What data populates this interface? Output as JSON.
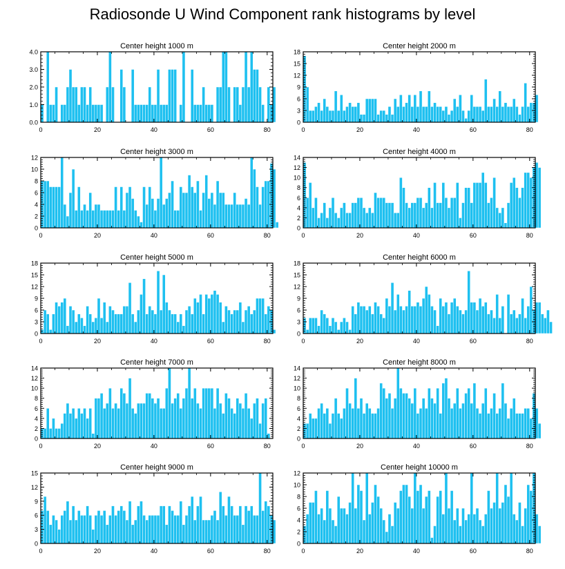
{
  "page": {
    "title": "Radiosonde U Wind Component rank histograms by level"
  },
  "colors": {
    "bar": "#1ec0f0",
    "bar_edge": "#ffffff",
    "axis": "#000000"
  },
  "chart_data": [
    {
      "type": "bar",
      "title": "Center height 1000 m",
      "xlim": [
        0,
        82
      ],
      "ylim": [
        0,
        4
      ],
      "xticks": [
        0,
        20,
        40,
        60,
        80
      ],
      "yticks": [
        0,
        1,
        2,
        3,
        4
      ],
      "ytick_labels": [
        "0.0",
        "1.0",
        "2.0",
        "3.0",
        "4.0"
      ],
      "values": [
        1,
        0,
        4,
        1,
        1,
        2,
        0,
        1,
        1,
        2,
        3,
        2,
        2,
        1,
        2,
        2,
        1,
        2,
        1,
        1,
        1,
        1,
        0,
        2,
        4,
        2,
        0,
        0,
        3,
        2,
        0,
        0,
        3,
        1,
        1,
        1,
        1,
        1,
        2,
        1,
        1,
        3,
        1,
        1,
        1,
        3,
        3,
        3,
        0,
        1,
        4,
        0,
        0,
        3,
        1,
        1,
        1,
        2,
        1,
        1,
        1,
        0,
        2,
        2,
        4,
        4,
        2,
        0,
        2,
        2,
        1,
        2,
        4,
        2,
        4,
        3,
        3,
        2,
        1,
        0,
        2,
        1,
        2
      ]
    },
    {
      "type": "bar",
      "title": "Center height 2000 m",
      "xlim": [
        0,
        82
      ],
      "ylim": [
        0,
        18
      ],
      "xticks": [
        0,
        20,
        40,
        60,
        80
      ],
      "yticks": [
        0,
        3,
        6,
        9,
        12,
        15,
        18
      ],
      "ytick_labels": [
        "0",
        "3",
        "6",
        "9",
        "12",
        "15",
        "18"
      ],
      "values": [
        17,
        9,
        3,
        3,
        4,
        5,
        3,
        6,
        4,
        3,
        3,
        8,
        3,
        7,
        3,
        4,
        5,
        4,
        4,
        5,
        2,
        2,
        6,
        6,
        6,
        6,
        2,
        3,
        3,
        2,
        4,
        2,
        6,
        4,
        7,
        4,
        5,
        7,
        4,
        7,
        4,
        8,
        4,
        4,
        8,
        4,
        5,
        4,
        4,
        3,
        4,
        2,
        3,
        6,
        4,
        7,
        3,
        1,
        3,
        7,
        4,
        4,
        4,
        3,
        11,
        4,
        4,
        6,
        4,
        8,
        4,
        5,
        4,
        4,
        6,
        4,
        2,
        4,
        10,
        4,
        5,
        5,
        7
      ]
    },
    {
      "type": "bar",
      "title": "Center height 3000 m",
      "xlim": [
        0,
        82
      ],
      "ylim": [
        0,
        12
      ],
      "xticks": [
        0,
        20,
        40,
        60,
        80
      ],
      "yticks": [
        0,
        2,
        4,
        6,
        8,
        10,
        12
      ],
      "ytick_labels": [
        "0",
        "2",
        "4",
        "6",
        "8",
        "10",
        "12"
      ],
      "values": [
        8,
        8,
        8,
        7,
        7,
        7,
        7,
        12,
        4,
        2,
        6,
        10,
        3,
        7,
        3,
        4,
        3,
        6,
        3,
        4,
        4,
        3,
        3,
        3,
        3,
        3,
        7,
        3,
        7,
        3,
        6,
        7,
        5,
        3,
        2,
        1,
        7,
        4,
        7,
        5,
        3,
        5,
        12,
        4,
        5,
        6,
        8,
        3,
        3,
        7,
        6,
        6,
        9,
        7,
        6,
        8,
        3,
        6,
        9,
        5,
        6,
        4,
        8,
        6,
        6,
        4,
        4,
        4,
        6,
        4,
        4,
        4,
        5,
        4,
        12,
        10,
        7,
        4,
        7,
        8,
        8,
        11,
        10,
        1
      ]
    },
    {
      "type": "bar",
      "title": "Center height 4000 m",
      "xlim": [
        0,
        82
      ],
      "ylim": [
        0,
        14
      ],
      "xticks": [
        0,
        20,
        40,
        60,
        80
      ],
      "yticks": [
        0,
        2,
        4,
        6,
        8,
        10,
        12,
        14
      ],
      "ytick_labels": [
        "0",
        "2",
        "4",
        "6",
        "8",
        "10",
        "12",
        "14"
      ],
      "values": [
        13,
        6,
        9,
        4,
        6,
        2,
        3,
        5,
        2,
        4,
        6,
        3,
        2,
        4,
        5,
        3,
        3,
        5,
        5,
        6,
        6,
        4,
        3,
        4,
        3,
        7,
        6,
        6,
        6,
        5,
        5,
        5,
        3,
        3,
        10,
        8,
        5,
        4,
        5,
        5,
        6,
        6,
        4,
        5,
        8,
        4,
        9,
        5,
        5,
        9,
        6,
        4,
        6,
        6,
        9,
        2,
        5,
        8,
        8,
        5,
        9,
        9,
        9,
        11,
        9,
        5,
        6,
        10,
        4,
        3,
        4,
        1,
        5,
        9,
        10,
        8,
        6,
        8,
        11,
        11,
        10,
        12,
        13,
        12
      ]
    },
    {
      "type": "bar",
      "title": "Center height 5000 m",
      "xlim": [
        0,
        82
      ],
      "ylim": [
        0,
        18
      ],
      "xticks": [
        0,
        20,
        40,
        60,
        80
      ],
      "yticks": [
        0,
        3,
        6,
        9,
        12,
        15,
        18
      ],
      "ytick_labels": [
        "0",
        "3",
        "6",
        "9",
        "12",
        "15",
        "18"
      ],
      "values": [
        1,
        6,
        5,
        1,
        5,
        8,
        7,
        8,
        9,
        2,
        7,
        6,
        3,
        5,
        4,
        2,
        7,
        5,
        3,
        4,
        9,
        4,
        8,
        3,
        7,
        6,
        5,
        5,
        5,
        7,
        7,
        13,
        5,
        3,
        6,
        10,
        14,
        5,
        7,
        6,
        5,
        16,
        6,
        15,
        8,
        6,
        5,
        5,
        3,
        5,
        2,
        6,
        7,
        5,
        9,
        8,
        10,
        5,
        10,
        9,
        10,
        11,
        10,
        8,
        3,
        7,
        6,
        5,
        6,
        6,
        8,
        3,
        6,
        7,
        5,
        6,
        9,
        9,
        9,
        5,
        7,
        6,
        1
      ]
    },
    {
      "type": "bar",
      "title": "Center height 6000 m",
      "xlim": [
        0,
        82
      ],
      "ylim": [
        0,
        18
      ],
      "xticks": [
        0,
        20,
        40,
        60,
        80
      ],
      "yticks": [
        0,
        3,
        6,
        9,
        12,
        15,
        18
      ],
      "ytick_labels": [
        "0",
        "3",
        "6",
        "9",
        "12",
        "15",
        "18"
      ],
      "values": [
        4,
        1,
        4,
        4,
        4,
        2,
        6,
        5,
        4,
        2,
        4,
        3,
        1,
        3,
        4,
        3,
        1,
        7,
        5,
        8,
        7,
        7,
        6,
        7,
        5,
        8,
        7,
        5,
        4,
        9,
        7,
        13,
        6,
        10,
        7,
        6,
        7,
        11,
        7,
        7,
        8,
        7,
        9,
        12,
        10,
        7,
        6,
        2,
        9,
        7,
        8,
        5,
        8,
        9,
        7,
        6,
        5,
        6,
        16,
        8,
        8,
        6,
        9,
        7,
        8,
        5,
        6,
        4,
        10,
        4,
        7,
        0,
        10,
        5,
        6,
        4,
        5,
        9,
        4,
        7,
        12,
        6,
        8,
        8,
        5,
        4,
        6,
        3
      ]
    },
    {
      "type": "bar",
      "title": "Center height 7000 m",
      "xlim": [
        0,
        82
      ],
      "ylim": [
        0,
        14
      ],
      "xticks": [
        0,
        20,
        40,
        60,
        80
      ],
      "yticks": [
        0,
        2,
        4,
        6,
        8,
        10,
        12,
        14
      ],
      "ytick_labels": [
        "0",
        "2",
        "4",
        "6",
        "8",
        "10",
        "12",
        "14"
      ],
      "values": [
        2,
        2,
        6,
        2,
        4,
        2,
        2,
        3,
        5,
        7,
        5,
        6,
        4,
        6,
        5,
        6,
        4,
        6,
        1,
        8,
        8,
        9,
        6,
        7,
        10,
        6,
        7,
        6,
        10,
        9,
        7,
        12,
        6,
        5,
        7,
        7,
        7,
        9,
        9,
        8,
        7,
        8,
        6,
        6,
        10,
        14,
        7,
        8,
        9,
        6,
        8,
        10,
        14,
        8,
        10,
        7,
        6,
        10,
        10,
        10,
        10,
        6,
        10,
        7,
        5,
        9,
        8,
        6,
        5,
        8,
        7,
        6,
        9,
        6,
        4,
        7,
        8,
        3,
        7,
        8,
        1
      ]
    },
    {
      "type": "bar",
      "title": "Center height 8000 m",
      "xlim": [
        0,
        82
      ],
      "ylim": [
        0,
        14
      ],
      "xticks": [
        0,
        20,
        40,
        60,
        80
      ],
      "yticks": [
        0,
        2,
        4,
        6,
        8,
        10,
        12,
        14
      ],
      "ytick_labels": [
        "0",
        "2",
        "4",
        "6",
        "8",
        "10",
        "12",
        "14"
      ],
      "values": [
        3,
        3,
        5,
        4,
        4,
        6,
        7,
        5,
        6,
        3,
        5,
        8,
        5,
        4,
        6,
        10,
        7,
        6,
        12,
        6,
        8,
        5,
        7,
        6,
        5,
        5,
        6,
        11,
        10,
        8,
        9,
        6,
        8,
        14,
        10,
        9,
        9,
        8,
        7,
        10,
        5,
        6,
        8,
        6,
        10,
        8,
        7,
        10,
        5,
        11,
        12,
        8,
        6,
        7,
        10,
        6,
        7,
        9,
        10,
        7,
        11,
        6,
        5,
        7,
        10,
        5,
        6,
        9,
        5,
        6,
        11,
        7,
        4,
        6,
        8,
        5,
        5,
        5,
        6,
        6,
        4,
        9,
        6,
        3
      ]
    },
    {
      "type": "bar",
      "title": "Center height 9000 m",
      "xlim": [
        0,
        82
      ],
      "ylim": [
        0,
        15
      ],
      "xticks": [
        0,
        20,
        40,
        60,
        80
      ],
      "yticks": [
        0,
        3,
        6,
        9,
        12,
        15
      ],
      "ytick_labels": [
        "0",
        "3",
        "6",
        "9",
        "12",
        "15"
      ],
      "values": [
        7,
        10,
        7,
        4,
        6,
        5,
        3,
        6,
        7,
        9,
        5,
        8,
        5,
        7,
        6,
        6,
        8,
        6,
        3,
        6,
        7,
        6,
        7,
        4,
        6,
        8,
        6,
        7,
        8,
        7,
        5,
        9,
        4,
        5,
        8,
        9,
        6,
        5,
        6,
        6,
        6,
        6,
        8,
        8,
        4,
        8,
        7,
        6,
        6,
        9,
        4,
        6,
        8,
        10,
        5,
        8,
        10,
        5,
        5,
        5,
        6,
        7,
        5,
        11,
        8,
        6,
        10,
        8,
        6,
        6,
        8,
        4,
        8,
        7,
        8,
        6,
        6,
        15,
        7,
        9,
        8,
        6,
        5
      ]
    },
    {
      "type": "bar",
      "title": "Center height 10000 m",
      "xlim": [
        0,
        82
      ],
      "ylim": [
        0,
        12
      ],
      "xticks": [
        0,
        20,
        40,
        60,
        80
      ],
      "yticks": [
        0,
        2,
        4,
        6,
        8,
        10,
        12
      ],
      "ytick_labels": [
        "0",
        "2",
        "4",
        "6",
        "8",
        "10",
        "12"
      ],
      "values": [
        3,
        5,
        7,
        7,
        9,
        5,
        6,
        4,
        9,
        6,
        4,
        3,
        8,
        6,
        6,
        5,
        7,
        12,
        6,
        10,
        9,
        4,
        12,
        5,
        7,
        10,
        8,
        6,
        4,
        2,
        5,
        3,
        7,
        6,
        9,
        10,
        10,
        8,
        6,
        12,
        9,
        10,
        6,
        8,
        9,
        1,
        3,
        8,
        9,
        5,
        12,
        6,
        9,
        4,
        6,
        3,
        6,
        4,
        5,
        12,
        5,
        6,
        4,
        3,
        5,
        9,
        6,
        7,
        12,
        6,
        7,
        10,
        8,
        12,
        5,
        4,
        7,
        3,
        6,
        10,
        9,
        12,
        5,
        3
      ]
    }
  ]
}
